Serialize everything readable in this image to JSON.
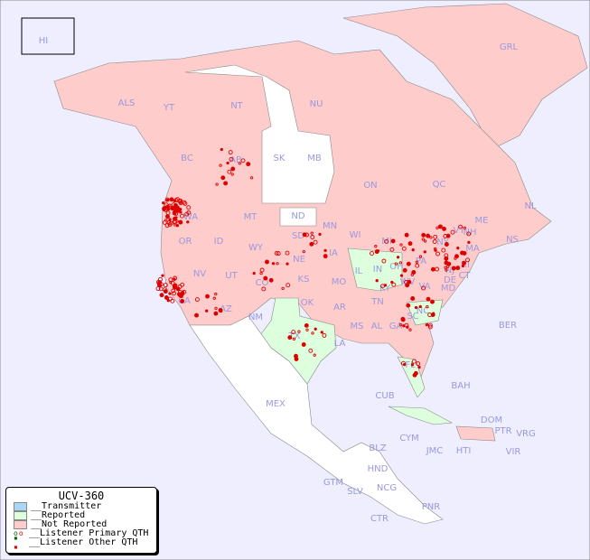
{
  "map": {
    "colors": {
      "ocean": "#eeeeff",
      "transmitter": "#a8d8f8",
      "reported": "#ddffdd",
      "not_reported": "#ffcccc",
      "no_data": "#ffffff",
      "label": "#9999dd",
      "marker": "#dd0000",
      "marker_reported": "#006600"
    },
    "labels": [
      "HI",
      "ALS",
      "YT",
      "NT",
      "NU",
      "GRL",
      "BC",
      "AB",
      "SK",
      "MB",
      "ON",
      "QC",
      "NL",
      "NS",
      "WA",
      "OR",
      "ID",
      "MT",
      "ND",
      "MN",
      "WI",
      "MI",
      "SD",
      "WY",
      "NV",
      "UT",
      "CA",
      "CO",
      "NE",
      "IA",
      "IL",
      "IN",
      "OH",
      "PA",
      "NY",
      "VT",
      "NH",
      "ME",
      "MA",
      "RI",
      "CT",
      "NJ",
      "DE",
      "MD",
      "WV",
      "VA",
      "KY",
      "KS",
      "MO",
      "OK",
      "AR",
      "TN",
      "NC",
      "SC",
      "GA",
      "AL",
      "MS",
      "LA",
      "TX",
      "AZ",
      "NM",
      "FL",
      "BER",
      "BAH",
      "CUB",
      "MEX",
      "DOM",
      "PTR",
      "VRG",
      "VIR",
      "CYM",
      "JMC",
      "HTI",
      "BLZ",
      "HND",
      "GTM",
      "SLV",
      "NCG",
      "CTR",
      "PNR"
    ]
  },
  "legend": {
    "title": "UCV-360",
    "items": [
      "__Transmitter",
      "__Reported",
      "__Not Reported",
      "__Listener Primary QTH",
      "__Listener Other QTH"
    ]
  }
}
